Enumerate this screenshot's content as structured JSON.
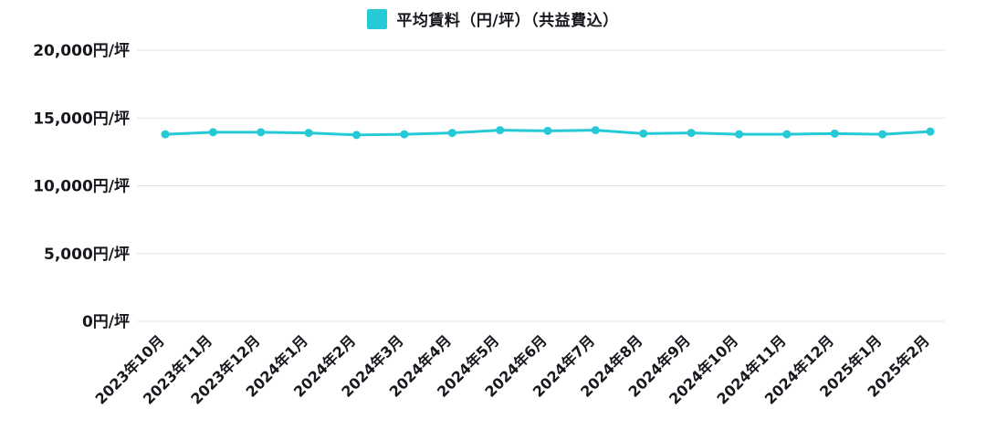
{
  "legend": {
    "label": "平均賃料（円/坪）（共益費込）",
    "swatch_color": "#26c9d6"
  },
  "chart_data": {
    "type": "line",
    "title": "",
    "xlabel": "",
    "ylabel": "",
    "categories": [
      "2023年10月",
      "2023年11月",
      "2023年12月",
      "2024年1月",
      "2024年2月",
      "2024年3月",
      "2024年4月",
      "2024年5月",
      "2024年6月",
      "2024年7月",
      "2024年8月",
      "2024年9月",
      "2024年10月",
      "2024年11月",
      "2024年12月",
      "2025年1月",
      "2025年2月"
    ],
    "series": [
      {
        "name": "平均賃料（円/坪）（共益費込）",
        "color": "#26c9d6",
        "values": [
          13800,
          13950,
          13950,
          13900,
          13750,
          13800,
          13900,
          14100,
          14050,
          14100,
          13850,
          13900,
          13800,
          13800,
          13850,
          13800,
          14000
        ]
      }
    ],
    "ylim": [
      0,
      20000
    ],
    "yticks": [
      0,
      5000,
      10000,
      15000,
      20000
    ],
    "ytick_labels": [
      "0円/坪",
      "5,000円/坪",
      "10,000円/坪",
      "15,000円/坪",
      "20,000円/坪"
    ],
    "grid": true,
    "legend_position": "top-center",
    "x_label_rotation": -45
  }
}
